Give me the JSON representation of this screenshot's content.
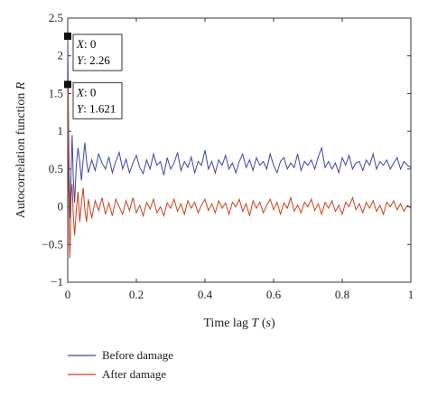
{
  "chart_data": {
    "type": "line",
    "xlabel_prefix": "Time lag ",
    "xlabel_symbol": "T",
    "xlabel_unit_open": " (",
    "xlabel_unit": "s",
    "xlabel_unit_close": ")",
    "ylabel_prefix": "Autocorrelation function ",
    "ylabel_symbol": "R",
    "xlim": [
      0,
      1
    ],
    "ylim": [
      -1,
      2.5
    ],
    "xticks": [
      "0",
      "0.2",
      "0.4",
      "0.6",
      "0.8",
      "1"
    ],
    "yticks": [
      "−1",
      "−0.5",
      "0",
      "0.5",
      "1",
      "1.5",
      "2",
      "2.5"
    ],
    "grid": false,
    "legend_position": "bottom-left",
    "series": [
      {
        "name": "Before damage",
        "color": "#3b44a8",
        "x": [
          0,
          0.002,
          0.004,
          0.007,
          0.01,
          0.013,
          0.016,
          0.02,
          0.025,
          0.03,
          0.035,
          0.04,
          0.045,
          0.05,
          0.055,
          0.06,
          0.07,
          0.08,
          0.09,
          0.1,
          0.11,
          0.12,
          0.13,
          0.14,
          0.15,
          0.16,
          0.17,
          0.18,
          0.19,
          0.2,
          0.21,
          0.22,
          0.23,
          0.24,
          0.25,
          0.26,
          0.27,
          0.28,
          0.29,
          0.3,
          0.31,
          0.32,
          0.33,
          0.34,
          0.35,
          0.36,
          0.37,
          0.38,
          0.39,
          0.4,
          0.41,
          0.42,
          0.43,
          0.44,
          0.45,
          0.46,
          0.47,
          0.48,
          0.49,
          0.5,
          0.51,
          0.52,
          0.53,
          0.54,
          0.55,
          0.56,
          0.57,
          0.58,
          0.59,
          0.6,
          0.61,
          0.62,
          0.63,
          0.64,
          0.65,
          0.66,
          0.67,
          0.68,
          0.69,
          0.7,
          0.71,
          0.72,
          0.73,
          0.74,
          0.75,
          0.76,
          0.77,
          0.78,
          0.79,
          0.8,
          0.81,
          0.82,
          0.83,
          0.84,
          0.85,
          0.86,
          0.87,
          0.88,
          0.89,
          0.9,
          0.91,
          0.92,
          0.93,
          0.94,
          0.95,
          0.96,
          0.97,
          0.98,
          0.99,
          1.0
        ],
        "y": [
          2.26,
          1.2,
          0.5,
          -0.15,
          0.5,
          0.95,
          0.4,
          0.05,
          0.55,
          0.78,
          0.6,
          0.35,
          0.62,
          0.85,
          0.6,
          0.45,
          0.62,
          0.48,
          0.7,
          0.58,
          0.5,
          0.66,
          0.45,
          0.6,
          0.72,
          0.5,
          0.63,
          0.45,
          0.58,
          0.68,
          0.52,
          0.44,
          0.62,
          0.5,
          0.7,
          0.55,
          0.6,
          0.42,
          0.65,
          0.5,
          0.58,
          0.72,
          0.48,
          0.6,
          0.52,
          0.66,
          0.45,
          0.6,
          0.55,
          0.75,
          0.5,
          0.6,
          0.45,
          0.62,
          0.55,
          0.68,
          0.5,
          0.58,
          0.45,
          0.6,
          0.7,
          0.52,
          0.62,
          0.48,
          0.65,
          0.55,
          0.6,
          0.5,
          0.7,
          0.55,
          0.45,
          0.6,
          0.65,
          0.5,
          0.58,
          0.52,
          0.7,
          0.48,
          0.6,
          0.55,
          0.62,
          0.5,
          0.66,
          0.78,
          0.52,
          0.6,
          0.5,
          0.58,
          0.45,
          0.65,
          0.55,
          0.68,
          0.5,
          0.58,
          0.6,
          0.48,
          0.62,
          0.55,
          0.7,
          0.5,
          0.6,
          0.55,
          0.62,
          0.5,
          0.58,
          0.65,
          0.5,
          0.6,
          0.55,
          0.52
        ]
      },
      {
        "name": "After damage",
        "color": "#c9401c",
        "x": [
          0,
          0.002,
          0.004,
          0.006,
          0.008,
          0.01,
          0.013,
          0.016,
          0.02,
          0.025,
          0.03,
          0.035,
          0.04,
          0.045,
          0.05,
          0.055,
          0.06,
          0.07,
          0.08,
          0.09,
          0.1,
          0.11,
          0.12,
          0.13,
          0.14,
          0.15,
          0.16,
          0.17,
          0.18,
          0.19,
          0.2,
          0.21,
          0.22,
          0.23,
          0.24,
          0.25,
          0.26,
          0.27,
          0.28,
          0.29,
          0.3,
          0.31,
          0.32,
          0.33,
          0.34,
          0.35,
          0.36,
          0.37,
          0.38,
          0.39,
          0.4,
          0.41,
          0.42,
          0.43,
          0.44,
          0.45,
          0.46,
          0.47,
          0.48,
          0.49,
          0.5,
          0.51,
          0.52,
          0.53,
          0.54,
          0.55,
          0.56,
          0.57,
          0.58,
          0.59,
          0.6,
          0.61,
          0.62,
          0.63,
          0.64,
          0.65,
          0.66,
          0.67,
          0.68,
          0.69,
          0.7,
          0.71,
          0.72,
          0.73,
          0.74,
          0.75,
          0.76,
          0.77,
          0.78,
          0.79,
          0.8,
          0.81,
          0.82,
          0.83,
          0.84,
          0.85,
          0.86,
          0.87,
          0.88,
          0.89,
          0.9,
          0.91,
          0.92,
          0.93,
          0.94,
          0.95,
          0.96,
          0.97,
          0.98,
          0.99,
          1.0
        ],
        "y": [
          1.621,
          0.6,
          -0.2,
          -0.68,
          -0.35,
          0.15,
          0.3,
          -0.1,
          -0.38,
          -0.05,
          0.2,
          -0.2,
          0.05,
          0.25,
          -0.05,
          -0.2,
          0.1,
          -0.15,
          0.08,
          -0.05,
          0.12,
          -0.1,
          0.05,
          -0.12,
          0.1,
          0.0,
          -0.1,
          0.08,
          -0.05,
          0.12,
          -0.08,
          0.02,
          -0.12,
          0.06,
          -0.03,
          0.1,
          -0.08,
          0.0,
          -0.12,
          0.05,
          -0.02,
          0.1,
          -0.06,
          0.04,
          -0.1,
          0.08,
          -0.02,
          0.06,
          -0.08,
          0.02,
          0.1,
          -0.05,
          0.04,
          -0.08,
          0.08,
          -0.02,
          0.05,
          -0.1,
          0.06,
          0.0,
          0.1,
          -0.06,
          0.04,
          -0.12,
          0.08,
          -0.02,
          0.06,
          -0.08,
          0.02,
          0.1,
          -0.04,
          0.06,
          -0.1,
          0.05,
          -0.02,
          0.12,
          -0.06,
          0.02,
          -0.08,
          0.06,
          0.0,
          0.1,
          -0.05,
          0.04,
          -0.1,
          0.06,
          -0.02,
          0.08,
          -0.06,
          0.02,
          -0.1,
          0.06,
          0.0,
          0.12,
          -0.04,
          0.04,
          -0.08,
          0.06,
          -0.02,
          0.08,
          -0.06,
          0.02,
          -0.1,
          0.06,
          0.0,
          0.08,
          -0.04,
          0.04,
          -0.06,
          0.02,
          -0.02
        ]
      }
    ],
    "datatips": [
      {
        "series": "Before damage",
        "x_label": "X",
        "x_value": "0",
        "y_label": "Y",
        "y_value": "2.26",
        "x": 0,
        "y": 2.26
      },
      {
        "series": "After damage",
        "x_label": "X",
        "x_value": "0",
        "y_label": "Y",
        "y_value": "1.621",
        "x": 0,
        "y": 1.621
      }
    ]
  }
}
